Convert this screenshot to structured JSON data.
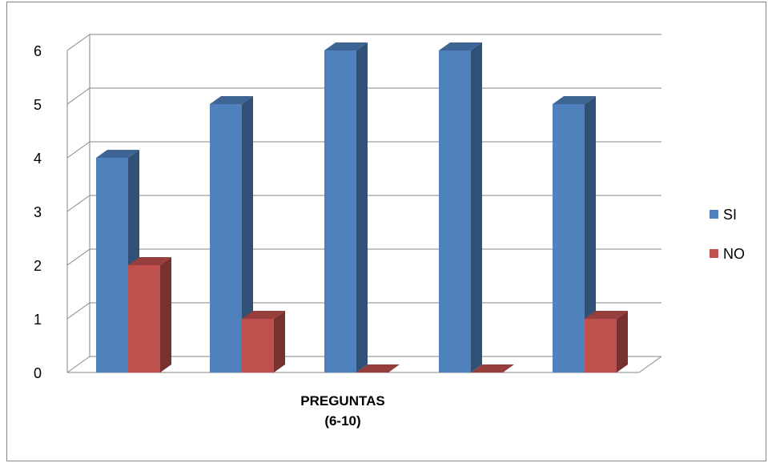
{
  "chart_data": {
    "type": "bar",
    "style": "3d-clustered-column",
    "categories": [
      "",
      "",
      "",
      "",
      ""
    ],
    "series": [
      {
        "name": "SI",
        "values": [
          4,
          5,
          6,
          6,
          5
        ],
        "color": "#4F81BD"
      },
      {
        "name": "NO",
        "values": [
          2,
          1,
          0,
          0,
          1
        ],
        "color": "#C0504D"
      }
    ],
    "title": "",
    "xlabel_line1": "PREGUNTAS",
    "xlabel_line2": "(6-10)",
    "ylabel": "",
    "ylim": [
      0,
      6
    ],
    "yticks": [
      "0",
      "1",
      "2",
      "3",
      "4",
      "5",
      "6"
    ],
    "grid": true,
    "legend_position": "right"
  }
}
